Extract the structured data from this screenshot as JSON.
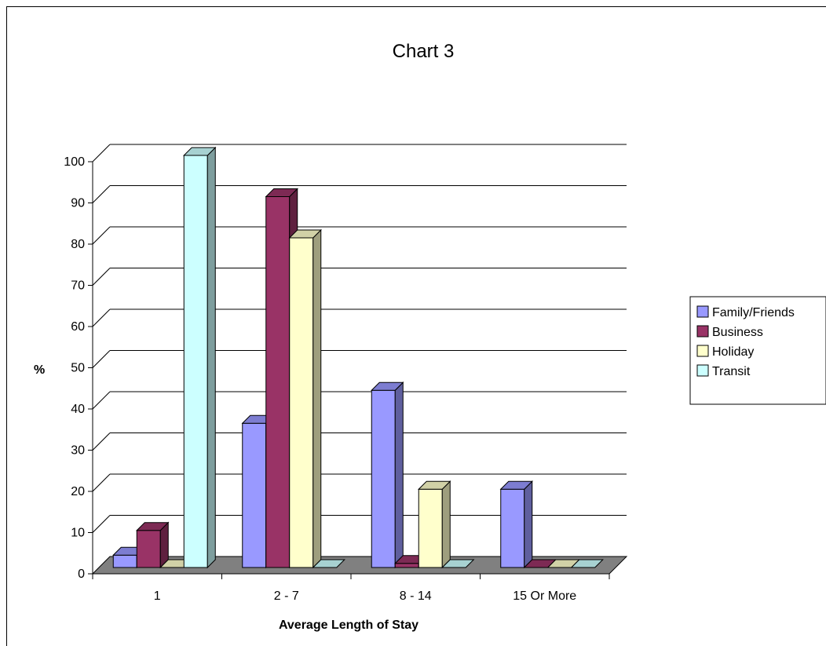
{
  "chart_data": {
    "type": "bar",
    "title": "Chart 3",
    "xlabel": "Average Length of Stay",
    "ylabel": "%",
    "categories": [
      "1",
      "2 - 7",
      "8 - 14",
      "15 Or More"
    ],
    "yticks": [
      "0",
      "10",
      "20",
      "30",
      "40",
      "50",
      "60",
      "70",
      "80",
      "90",
      "100"
    ],
    "ylim": [
      0,
      100
    ],
    "grid": true,
    "legend_position": "right",
    "series": [
      {
        "name": "Family/Friends",
        "values": [
          3,
          35,
          43,
          19
        ],
        "color": "#9999ff"
      },
      {
        "name": "Business",
        "values": [
          9,
          90,
          1,
          0
        ],
        "color": "#993366"
      },
      {
        "name": "Holiday",
        "values": [
          0,
          80,
          19,
          0
        ],
        "color": "#ffffcc"
      },
      {
        "name": "Transit",
        "values": [
          100,
          0,
          0,
          0
        ],
        "color": "#ccffff"
      }
    ],
    "floor_color": "#808080"
  }
}
